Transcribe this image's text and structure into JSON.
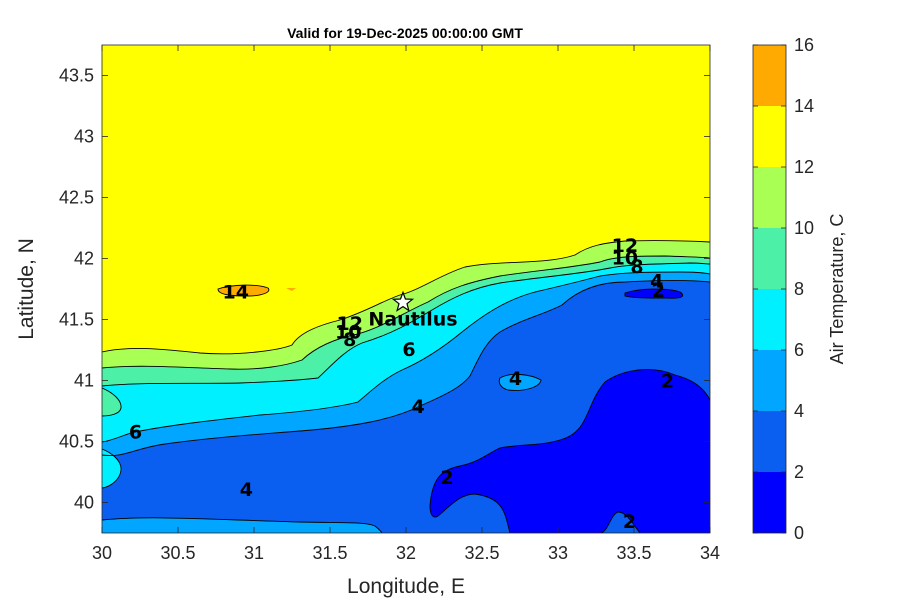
{
  "chart_data": {
    "type": "contour-map",
    "title": "Valid for 19-Dec-2025 00:00:00 GMT",
    "xlabel": "Longitude, E",
    "ylabel": "Latitude, N",
    "xlim": [
      30,
      34
    ],
    "ylim": [
      39.75,
      43.75
    ],
    "xticks": [
      "30",
      "30.5",
      "31",
      "31.5",
      "32",
      "32.5",
      "33",
      "33.5",
      "34"
    ],
    "yticks": [
      "40",
      "40.5",
      "41",
      "41.5",
      "42",
      "42.5",
      "43",
      "43.5"
    ],
    "grid": false,
    "colorbar": {
      "label": "Air Temperature, C",
      "ticks": [
        "0",
        "2",
        "4",
        "6",
        "8",
        "10",
        "12",
        "14",
        "16"
      ],
      "levels": [
        0,
        2,
        4,
        6,
        8,
        10,
        12,
        14,
        16
      ],
      "colors": [
        "#0000ff",
        "#0a5ef0",
        "#00a6ff",
        "#00f0ff",
        "#4cf0a6",
        "#aaff55",
        "#ffff00",
        "#ffaa00",
        "#ff5500"
      ]
    },
    "station": {
      "name": "Nautilus",
      "lon": 31.98,
      "lat": 41.64
    },
    "contour_labels": [
      {
        "text": "14",
        "lon": 30.88,
        "lat": 41.73
      },
      {
        "text": "12",
        "lon": 31.63,
        "lat": 41.47
      },
      {
        "text": "10",
        "lon": 31.62,
        "lat": 41.4
      },
      {
        "text": "8",
        "lon": 31.63,
        "lat": 41.34
      },
      {
        "text": "6",
        "lon": 32.02,
        "lat": 41.26
      },
      {
        "text": "12",
        "lon": 33.44,
        "lat": 42.11
      },
      {
        "text": "10",
        "lon": 33.44,
        "lat": 42.01
      },
      {
        "text": "8",
        "lon": 33.52,
        "lat": 41.94
      },
      {
        "text": "4",
        "lon": 33.65,
        "lat": 41.82
      },
      {
        "text": "2",
        "lon": 33.66,
        "lat": 41.74
      },
      {
        "text": "4",
        "lon": 32.72,
        "lat": 41.02
      },
      {
        "text": "2",
        "lon": 33.72,
        "lat": 41.0
      },
      {
        "text": "4",
        "lon": 32.08,
        "lat": 40.79
      },
      {
        "text": "6",
        "lon": 30.22,
        "lat": 40.58
      },
      {
        "text": "2",
        "lon": 32.27,
        "lat": 40.21
      },
      {
        "text": "4",
        "lon": 30.95,
        "lat": 40.11
      },
      {
        "text": "2",
        "lon": 33.47,
        "lat": 39.85
      }
    ]
  }
}
